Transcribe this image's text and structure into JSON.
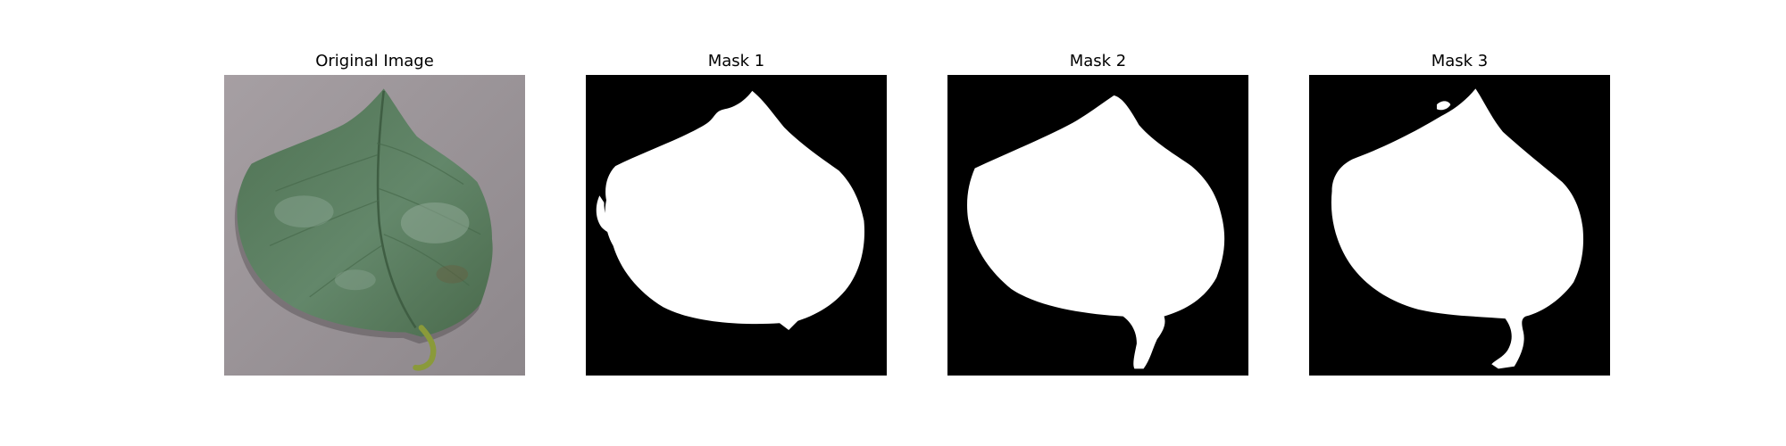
{
  "panels": [
    {
      "title": "Original Image",
      "image": "leaf-photo",
      "background": "#9a9397",
      "leaf_color": "#56795a",
      "stem_color": "#8a9a3a"
    },
    {
      "title": "Mask 1",
      "image": "binary-mask",
      "background": "#000000",
      "foreground": "#ffffff"
    },
    {
      "title": "Mask 2",
      "image": "binary-mask",
      "background": "#000000",
      "foreground": "#ffffff"
    },
    {
      "title": "Mask 3",
      "image": "binary-mask",
      "background": "#000000",
      "foreground": "#ffffff"
    }
  ]
}
